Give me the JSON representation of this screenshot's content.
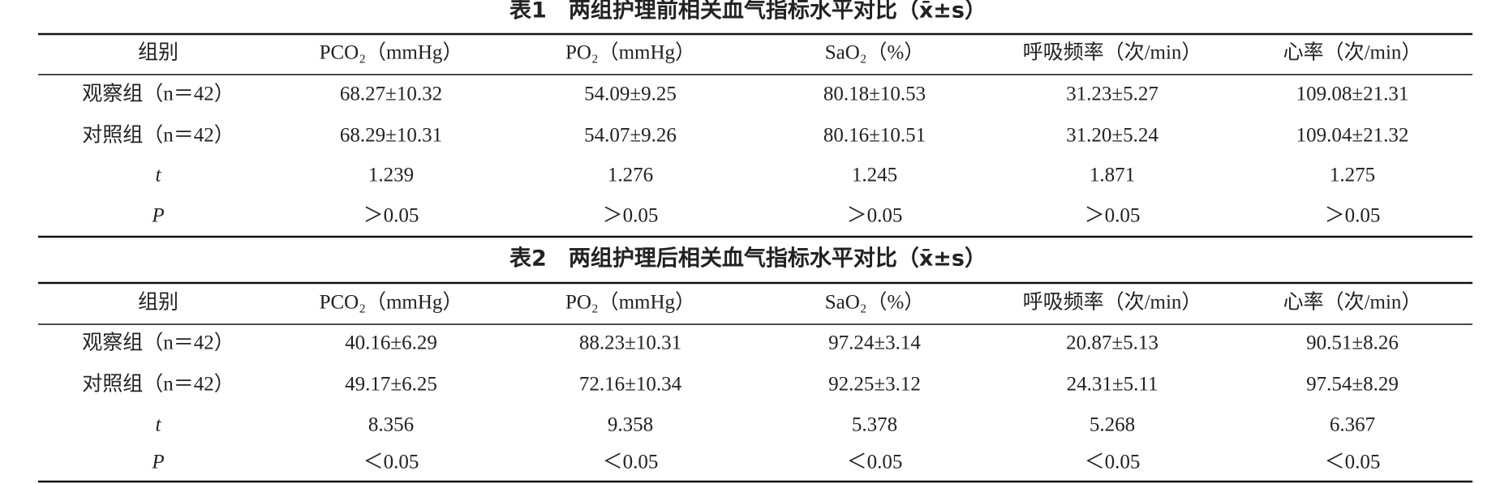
{
  "tables": [
    {
      "title": "表1　两组护理前相关血气指标水平对比（x̄±s）",
      "header": [
        "组别",
        "PCO₂（mmHg）",
        "PO₂（mmHg）",
        "SaO₂（%）",
        "呼吸频率（次/min）",
        "心率（次/min）"
      ],
      "rows": [
        [
          "观察组（n＝42）",
          "68.27±10.32",
          "54.09±9.25",
          "80.18±10.53",
          "31.23±5.27",
          "109.08±21.31"
        ],
        [
          "对照组（n＝42）",
          "68.29±10.31",
          "54.07±9.26",
          "80.16±10.51",
          "31.20±5.24",
          "109.04±21.32"
        ],
        [
          "t",
          "1.239",
          "1.276",
          "1.245",
          "1.871",
          "1.275"
        ],
        [
          "P",
          "＞0.05",
          "＞0.05",
          "＞0.05",
          "＞0.05",
          "＞0.05"
        ]
      ]
    },
    {
      "title": "表2　两组护理后相关血气指标水平对比（x̄±s）",
      "header": [
        "组别",
        "PCO₂（mmHg）",
        "PO₂（mmHg）",
        "SaO₂（%）",
        "呼吸频率（次/min）",
        "心率（次/min）"
      ],
      "rows": [
        [
          "观察组（n＝42）",
          "40.16±6.29",
          "88.23±10.31",
          "97.24±3.14",
          "20.87±5.13",
          "90.51±8.26"
        ],
        [
          "对照组（n＝42）",
          "49.17±6.25",
          "72.16±10.34",
          "92.25±3.12",
          "24.31±5.11",
          "97.54±8.29"
        ],
        [
          "t",
          "8.356",
          "9.358",
          "5.378",
          "5.268",
          "6.367"
        ],
        [
          "P",
          "＜0.05",
          "＜0.05",
          "＜0.05",
          "＜0.05",
          "＜0.05"
        ]
      ]
    }
  ]
}
